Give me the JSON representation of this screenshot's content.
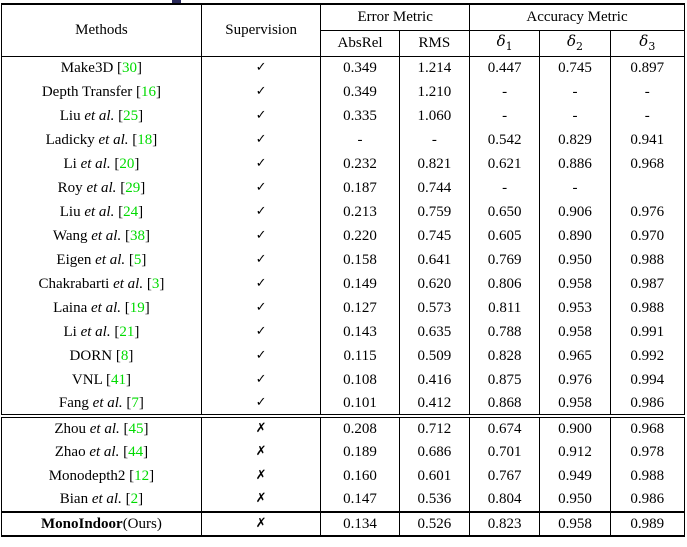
{
  "colors": {
    "cite_green": "#00db00",
    "text_black": "#000000"
  },
  "table": {
    "cite_open": " [",
    "cite_close": "]",
    "header": {
      "methods": "Methods",
      "supervision": "Supervision",
      "error_metric": "Error Metric",
      "accuracy_metric": "Accuracy Metric",
      "absrel": "AbsRel",
      "rms": "RMS",
      "delta_sym": "δ",
      "delta_subs": [
        "1",
        "2",
        "3"
      ]
    },
    "sections": [
      {
        "rows": [
          {
            "method": "Make3D",
            "etal": "",
            "suffix": "",
            "cite": "30",
            "mark": "✓",
            "values": [
              "0.349",
              "1.214",
              "0.447",
              "0.745",
              "0.897"
            ],
            "bold_values": [],
            "bold_method": false
          },
          {
            "method": "Depth Transfer",
            "etal": "",
            "suffix": "",
            "cite": "16",
            "mark": "✓",
            "values": [
              "0.349",
              "1.210",
              "-",
              "-",
              "-"
            ],
            "bold_values": [],
            "bold_method": false
          },
          {
            "method": "Liu",
            "etal": " et al.",
            "suffix": "",
            "cite": "25",
            "mark": "✓",
            "values": [
              "0.335",
              "1.060",
              "-",
              "-",
              "-"
            ],
            "bold_values": [],
            "bold_method": false
          },
          {
            "method": "Ladicky",
            "etal": " et al.",
            "suffix": "",
            "cite": "18",
            "mark": "✓",
            "values": [
              "-",
              "-",
              "0.542",
              "0.829",
              "0.941"
            ],
            "bold_values": [],
            "bold_method": false
          },
          {
            "method": "Li",
            "etal": " et al.",
            "suffix": "",
            "cite": "20",
            "mark": "✓",
            "values": [
              "0.232",
              "0.821",
              "0.621",
              "0.886",
              "0.968"
            ],
            "bold_values": [],
            "bold_method": false
          },
          {
            "method": "Roy",
            "etal": " et al.",
            "suffix": "",
            "cite": "29",
            "mark": "✓",
            "values": [
              "0.187",
              "0.744",
              "-",
              "-",
              ""
            ],
            "bold_values": [],
            "bold_method": false
          },
          {
            "method": "Liu",
            "etal": " et al.",
            "suffix": "",
            "cite": "24",
            "mark": "✓",
            "values": [
              "0.213",
              "0.759",
              "0.650",
              "0.906",
              "0.976"
            ],
            "bold_values": [],
            "bold_method": false
          },
          {
            "method": "Wang",
            "etal": " et al.",
            "suffix": "",
            "cite": "38",
            "mark": "✓",
            "values": [
              "0.220",
              "0.745",
              "0.605",
              "0.890",
              "0.970"
            ],
            "bold_values": [],
            "bold_method": false
          },
          {
            "method": "Eigen",
            "etal": " et al.",
            "suffix": "",
            "cite": "5",
            "mark": "✓",
            "values": [
              "0.158",
              "0.641",
              "0.769",
              "0.950",
              "0.988"
            ],
            "bold_values": [],
            "bold_method": false
          },
          {
            "method": "Chakrabarti",
            "etal": " et al.",
            "suffix": "",
            "cite": "3",
            "mark": "✓",
            "values": [
              "0.149",
              "0.620",
              "0.806",
              "0.958",
              "0.987"
            ],
            "bold_values": [],
            "bold_method": false
          },
          {
            "method": "Laina",
            "etal": " et al.",
            "suffix": "",
            "cite": "19",
            "mark": "✓",
            "values": [
              "0.127",
              "0.573",
              "0.811",
              "0.953",
              "0.988"
            ],
            "bold_values": [],
            "bold_method": false
          },
          {
            "method": "Li",
            "etal": " et al.",
            "suffix": "",
            "cite": "21",
            "mark": "✓",
            "values": [
              "0.143",
              "0.635",
              "0.788",
              "0.958",
              "0.991"
            ],
            "bold_values": [],
            "bold_method": false
          },
          {
            "method": "DORN",
            "etal": "",
            "suffix": "",
            "cite": "8",
            "mark": "✓",
            "values": [
              "0.115",
              "0.509",
              "0.828",
              "0.965",
              "0.992"
            ],
            "bold_values": [],
            "bold_method": false
          },
          {
            "method": "VNL",
            "etal": "",
            "suffix": "",
            "cite": "41",
            "mark": "✓",
            "values": [
              "0.108",
              "0.416",
              "0.875",
              "0.976",
              "0.994"
            ],
            "bold_values": [
              2,
              3,
              4
            ],
            "bold_method": false
          },
          {
            "method": "Fang",
            "etal": " et al.",
            "suffix": "",
            "cite": "7",
            "mark": "✓",
            "values": [
              "0.101",
              "0.412",
              "0.868",
              "0.958",
              "0.986"
            ],
            "bold_values": [
              0,
              1
            ],
            "bold_method": false
          }
        ]
      },
      {
        "rows": [
          {
            "method": "Zhou",
            "etal": " et al.",
            "suffix": "",
            "cite": "45",
            "mark": "✗",
            "values": [
              "0.208",
              "0.712",
              "0.674",
              "0.900",
              "0.968"
            ],
            "bold_values": [],
            "bold_method": false
          },
          {
            "method": "Zhao",
            "etal": " et al.",
            "suffix": "",
            "cite": "44",
            "mark": "✗",
            "values": [
              "0.189",
              "0.686",
              "0.701",
              "0.912",
              "0.978"
            ],
            "bold_values": [],
            "bold_method": false
          },
          {
            "method": "Monodepth2",
            "etal": "",
            "suffix": "",
            "cite": "12",
            "mark": "✗",
            "values": [
              "0.160",
              "0.601",
              "0.767",
              "0.949",
              "0.988"
            ],
            "bold_values": [],
            "bold_method": false
          },
          {
            "method": "Bian",
            "etal": " et al.",
            "suffix": "",
            "cite": "2",
            "mark": "✗",
            "values": [
              "0.147",
              "0.536",
              "0.804",
              "0.950",
              "0.986"
            ],
            "bold_values": [],
            "bold_method": false
          }
        ]
      },
      {
        "rows": [
          {
            "method": "MonoIndoor",
            "etal": "",
            "suffix": "(Ours)",
            "cite": "",
            "mark": "✗",
            "values": [
              "0.134",
              "0.526",
              "0.823",
              "0.958",
              "0.989"
            ],
            "bold_values": [
              0,
              1,
              2,
              3,
              4
            ],
            "bold_method": true
          }
        ]
      }
    ]
  }
}
